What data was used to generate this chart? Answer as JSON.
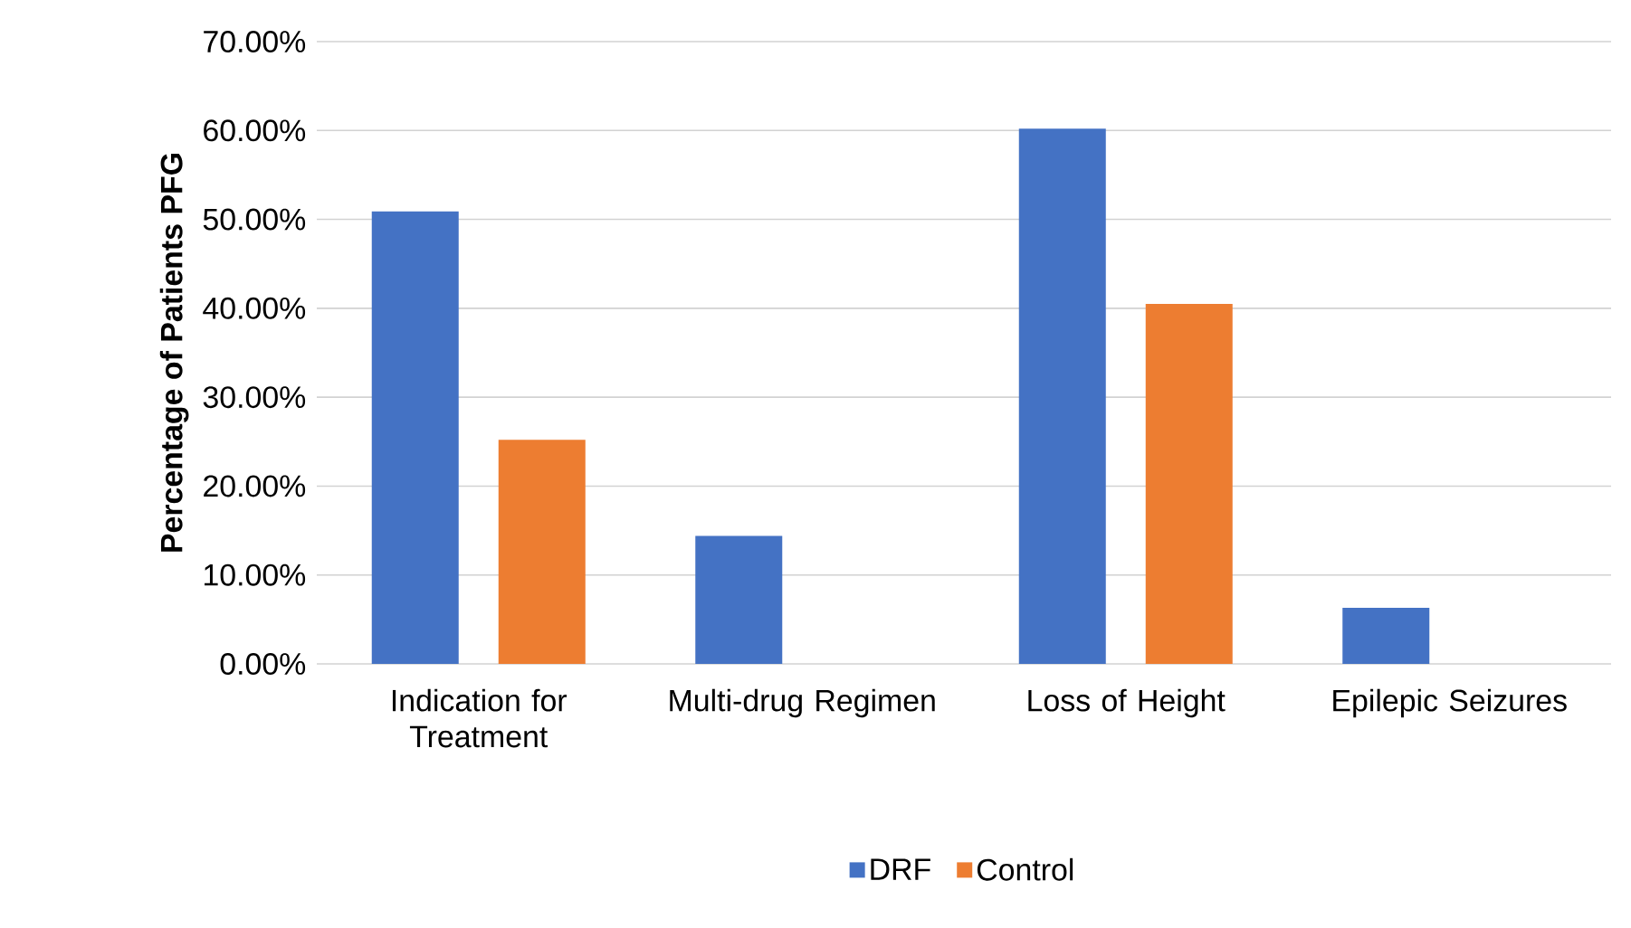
{
  "chart_data": {
    "type": "bar",
    "ylabel": "Percentage of Patients PFG",
    "categories": [
      "Indication for Treatment",
      "Multi-drug Regimen",
      "Loss of Height",
      "Epilepic Seizures"
    ],
    "series": [
      {
        "name": "DRF",
        "color": "#4472c4",
        "values": [
          50.9,
          14.4,
          60.2,
          6.3
        ]
      },
      {
        "name": "Control",
        "color": "#ed7d31",
        "values": [
          25.2,
          0,
          40.5,
          0
        ]
      }
    ],
    "ylim": [
      0,
      70
    ],
    "yticks": [
      {
        "value": 0,
        "label": "0.00%"
      },
      {
        "value": 10,
        "label": "10.00%"
      },
      {
        "value": 20,
        "label": "20.00%"
      },
      {
        "value": 30,
        "label": "30.00%"
      },
      {
        "value": 40,
        "label": "40.00%"
      },
      {
        "value": 50,
        "label": "50.00%"
      },
      {
        "value": 60,
        "label": "60.00%"
      },
      {
        "value": 70,
        "label": "70.00%"
      }
    ],
    "grid": "y",
    "legend": "bottom"
  }
}
